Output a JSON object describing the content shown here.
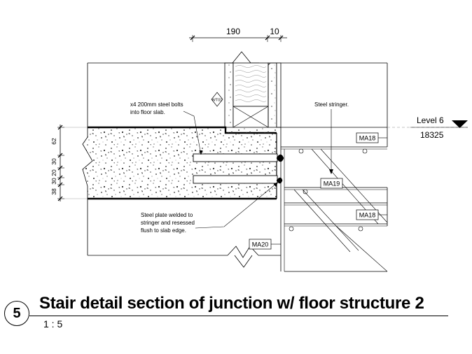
{
  "title": "Stair detail section of junction w/ floor structure 2",
  "scale": "1 : 5",
  "detail_number": "5",
  "dimensions_top": [
    "190",
    "10"
  ],
  "dimensions_left": [
    "62",
    "30",
    "20",
    "30",
    "38"
  ],
  "level": {
    "name": "Level 6",
    "elevation": "18325"
  },
  "tags": {
    "wall_type": "WT01",
    "ma18_upper": "MA18",
    "ma19": "MA19",
    "ma18_lower": "MA18",
    "ma20": "MA20"
  },
  "notes": {
    "bolts_line1": "x4 200mm steel bolts",
    "bolts_line2": "into floor slab.",
    "stringer": "Steel stringer.",
    "plate_line1": "Steel plate welded to",
    "plate_line2": "stringer and resessed",
    "plate_line3": "flush to slab edge."
  }
}
